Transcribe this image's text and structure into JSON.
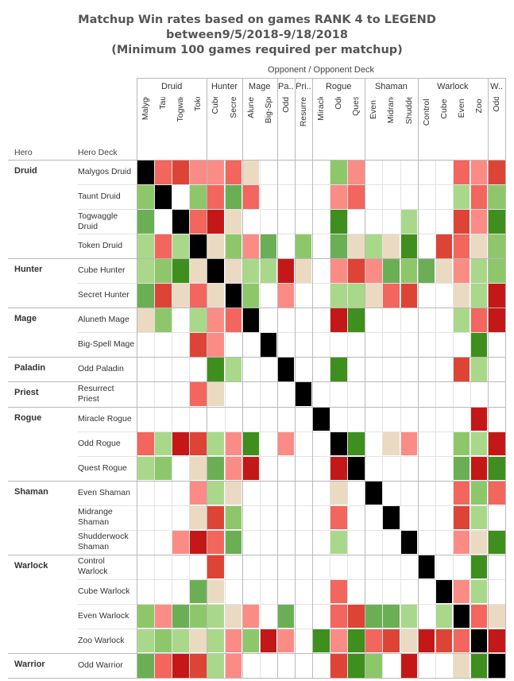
{
  "title_lines": [
    "Matchup Win rates based on games RANK 4 to LEGEND",
    "between9/5/2018-9/18/2018",
    "(Minimum 100 games required per matchup)"
  ],
  "axis": {
    "opponent_title": "Opponent  /  Opponent Deck",
    "hero_header": "Hero",
    "hero_deck_header": "Hero Deck"
  },
  "colors": {
    "dark_red": "#C41818",
    "red": "#DD4436",
    "salmon": "#F2665D",
    "pink": "#FA8C85",
    "beige": "#EBDAC2",
    "light_green": "#AAD88A",
    "green": "#8DC76A",
    "mid_green": "#6BAF55",
    "dark_green": "#3E8F1E",
    "mirror": "#000000",
    "empty": "#FFFFFF"
  },
  "chart_data": {
    "type": "heatmap",
    "title": "Matchup Win rates based on games RANK 4 to LEGEND between9/5/2018-9/18/2018 (Minimum 100 games required per matchup)",
    "x_title": "Opponent  /  Opponent Deck",
    "legend_codes": {
      "X": "mirror",
      "DR": "dark_red",
      "R": "red",
      "S": "salmon",
      "P": "pink",
      "B": "beige",
      "LG": "light_green",
      "G": "green",
      "MG": "mid_green",
      "DG": "dark_green",
      "": "no data"
    },
    "class_groups": [
      {
        "label": "Druid",
        "start": 0,
        "count": 4
      },
      {
        "label": "Hunter",
        "start": 4,
        "count": 2
      },
      {
        "label": "Mage",
        "start": 6,
        "count": 2
      },
      {
        "label": "Pa..",
        "start": 8,
        "count": 1
      },
      {
        "label": "Pri..",
        "start": 9,
        "count": 1
      },
      {
        "label": "Rogue",
        "start": 10,
        "count": 3
      },
      {
        "label": "Shaman",
        "start": 13,
        "count": 3
      },
      {
        "label": "Warlock",
        "start": 16,
        "count": 4
      },
      {
        "label": "W..",
        "start": 20,
        "count": 1
      }
    ],
    "opponent_decks": [
      "Malygos Druid",
      "Taunt Druid",
      "Togwaggle Dr..",
      "Token Druid",
      "Cube Hunter",
      "Secret Hunter",
      "Aluneth Mage",
      "Big-Spell Mage",
      "Odd Paladin",
      "Resurrect Priest",
      "Miracle Rogue",
      "Odd Rogue",
      "Quest Rogue",
      "Even Shaman",
      "Midrange Sha..",
      "Shudderwock ..",
      "Control Warlock",
      "Cube Warlock",
      "Even Warlock",
      "Zoo Warlock",
      "Odd Warrior"
    ],
    "hero_groups": [
      {
        "label": "Druid",
        "start": 0,
        "count": 4
      },
      {
        "label": "Hunter",
        "start": 4,
        "count": 2
      },
      {
        "label": "Mage",
        "start": 6,
        "count": 2
      },
      {
        "label": "Paladin",
        "start": 8,
        "count": 1
      },
      {
        "label": "Priest",
        "start": 9,
        "count": 1
      },
      {
        "label": "Rogue",
        "start": 10,
        "count": 3
      },
      {
        "label": "Shaman",
        "start": 13,
        "count": 3
      },
      {
        "label": "Warlock",
        "start": 16,
        "count": 4
      },
      {
        "label": "Warrior",
        "start": 20,
        "count": 1
      }
    ],
    "hero_decks": [
      "Malygos Druid",
      "Taunt Druid",
      "Togwaggle Druid",
      "Token Druid",
      "Cube Hunter",
      "Secret Hunter",
      "Aluneth Mage",
      "Big-Spell Mage",
      "Odd Paladin",
      "Resurrect Priest",
      "Miracle Rogue",
      "Odd Rogue",
      "Quest Rogue",
      "Even Shaman",
      "Midrange Shaman",
      "Shudderwock Shaman",
      "Control Warlock",
      "Cube Warlock",
      "Even Warlock",
      "Zoo Warlock",
      "Odd Warrior"
    ],
    "cells": [
      [
        "X",
        "S",
        "R",
        "P",
        "P",
        "S",
        "B",
        "",
        "",
        "",
        "",
        "G",
        "P",
        "",
        "",
        "",
        "",
        "",
        "S",
        "P",
        "R"
      ],
      [
        "G",
        "X",
        "",
        "G",
        "S",
        "MG",
        "S",
        "",
        "",
        "",
        "",
        "P",
        "S",
        "",
        "",
        "",
        "",
        "",
        "LG",
        "S",
        "G"
      ],
      [
        "MG",
        "",
        "X",
        "S",
        "DR",
        "B",
        "",
        "",
        "",
        "",
        "",
        "DG",
        "",
        "",
        "",
        "LG",
        "",
        "",
        "R",
        "P",
        "DG"
      ],
      [
        "LG",
        "S",
        "LG",
        "X",
        "B",
        "G",
        "P",
        "MG",
        "",
        "G",
        "",
        "MG",
        "B",
        "LG",
        "B",
        "DG",
        "",
        "R",
        "S",
        "B",
        "G"
      ],
      [
        "LG",
        "G",
        "DG",
        "B",
        "X",
        "B",
        "LG",
        "LG",
        "DR",
        "B",
        "",
        "P",
        "R",
        "P",
        "MG",
        "G",
        "MG",
        "B",
        "P",
        "LG",
        "G"
      ],
      [
        "MG",
        "R",
        "B",
        "S",
        "B",
        "X",
        "G",
        "",
        "P",
        "",
        "",
        "LG",
        "LG",
        "B",
        "S",
        "R",
        "",
        "",
        "B",
        "LG",
        "DR"
      ],
      [
        "B",
        "G",
        "",
        "LG",
        "P",
        "S",
        "X",
        "",
        "",
        "",
        "",
        "DR",
        "DG",
        "",
        "",
        "",
        "",
        "",
        "LG",
        "S",
        "DR"
      ],
      [
        "",
        "",
        "",
        "R",
        "P",
        "",
        "",
        "X",
        "",
        "",
        "",
        "",
        "",
        "",
        "",
        "",
        "",
        "",
        "",
        "DG",
        ""
      ],
      [
        "",
        "",
        "",
        "",
        "DG",
        "LG",
        "",
        "",
        "X",
        "",
        "",
        "DG",
        "",
        "",
        "",
        "",
        "",
        "",
        "R",
        "LG",
        ""
      ],
      [
        "",
        "",
        "",
        "S",
        "B",
        "",
        "",
        "",
        "",
        "X",
        "",
        "",
        "",
        "",
        "",
        "",
        "",
        "",
        "",
        "",
        ""
      ],
      [
        "",
        "",
        "",
        "",
        "",
        "",
        "",
        "",
        "",
        "",
        "X",
        "",
        "",
        "",
        "",
        "",
        "",
        "",
        "",
        "DR",
        ""
      ],
      [
        "S",
        "LG",
        "DR",
        "R",
        "LG",
        "P",
        "DG",
        "",
        "P",
        "",
        "",
        "X",
        "DG",
        "",
        "B",
        "P",
        "",
        "",
        "G",
        "LG",
        "DR"
      ],
      [
        "LG",
        "G",
        "",
        "B",
        "MG",
        "P",
        "DR",
        "",
        "",
        "",
        "",
        "DR",
        "X",
        "",
        "",
        "",
        "",
        "",
        "MG",
        "DR",
        "DG"
      ],
      [
        "",
        "",
        "",
        "P",
        "LG",
        "B",
        "",
        "",
        "",
        "",
        "",
        "B",
        "",
        "X",
        "",
        "",
        "",
        "",
        "S",
        "G",
        "S"
      ],
      [
        "",
        "",
        "",
        "B",
        "R",
        "G",
        "",
        "",
        "",
        "",
        "",
        "S",
        "",
        "",
        "X",
        "",
        "",
        "",
        "R",
        "LG",
        ""
      ],
      [
        "",
        "",
        "P",
        "DR",
        "S",
        "MG",
        "",
        "",
        "",
        "",
        "",
        "LG",
        "",
        "",
        "",
        "X",
        "",
        "",
        "P",
        "B",
        "DG"
      ],
      [
        "",
        "",
        "",
        "",
        "R",
        "",
        "",
        "",
        "",
        "",
        "",
        "",
        "",
        "",
        "",
        "",
        "X",
        "",
        "",
        "DG",
        ""
      ],
      [
        "",
        "",
        "",
        "MG",
        "B",
        "",
        "",
        "",
        "",
        "",
        "",
        "S",
        "",
        "",
        "",
        "",
        "",
        "X",
        "P",
        "LG",
        ""
      ],
      [
        "G",
        "P",
        "MG",
        "G",
        "LG",
        "B",
        "P",
        "",
        "MG",
        "",
        "",
        "S",
        "R",
        "MG",
        "MG",
        "LG",
        "",
        "LG",
        "X",
        "S",
        "B"
      ],
      [
        "LG",
        "G",
        "LG",
        "B",
        "LG",
        "P",
        "G",
        "DR",
        "P",
        "",
        "DG",
        "P",
        "DG",
        "S",
        "R",
        "B",
        "DR",
        "R",
        "S",
        "X",
        "DR"
      ],
      [
        "MG",
        "S",
        "DR",
        "R",
        "LG",
        "P",
        "",
        "",
        "",
        "",
        "",
        "R",
        "DG",
        "G",
        "",
        "DR",
        "",
        "",
        "B",
        "DG",
        "X"
      ]
    ]
  }
}
